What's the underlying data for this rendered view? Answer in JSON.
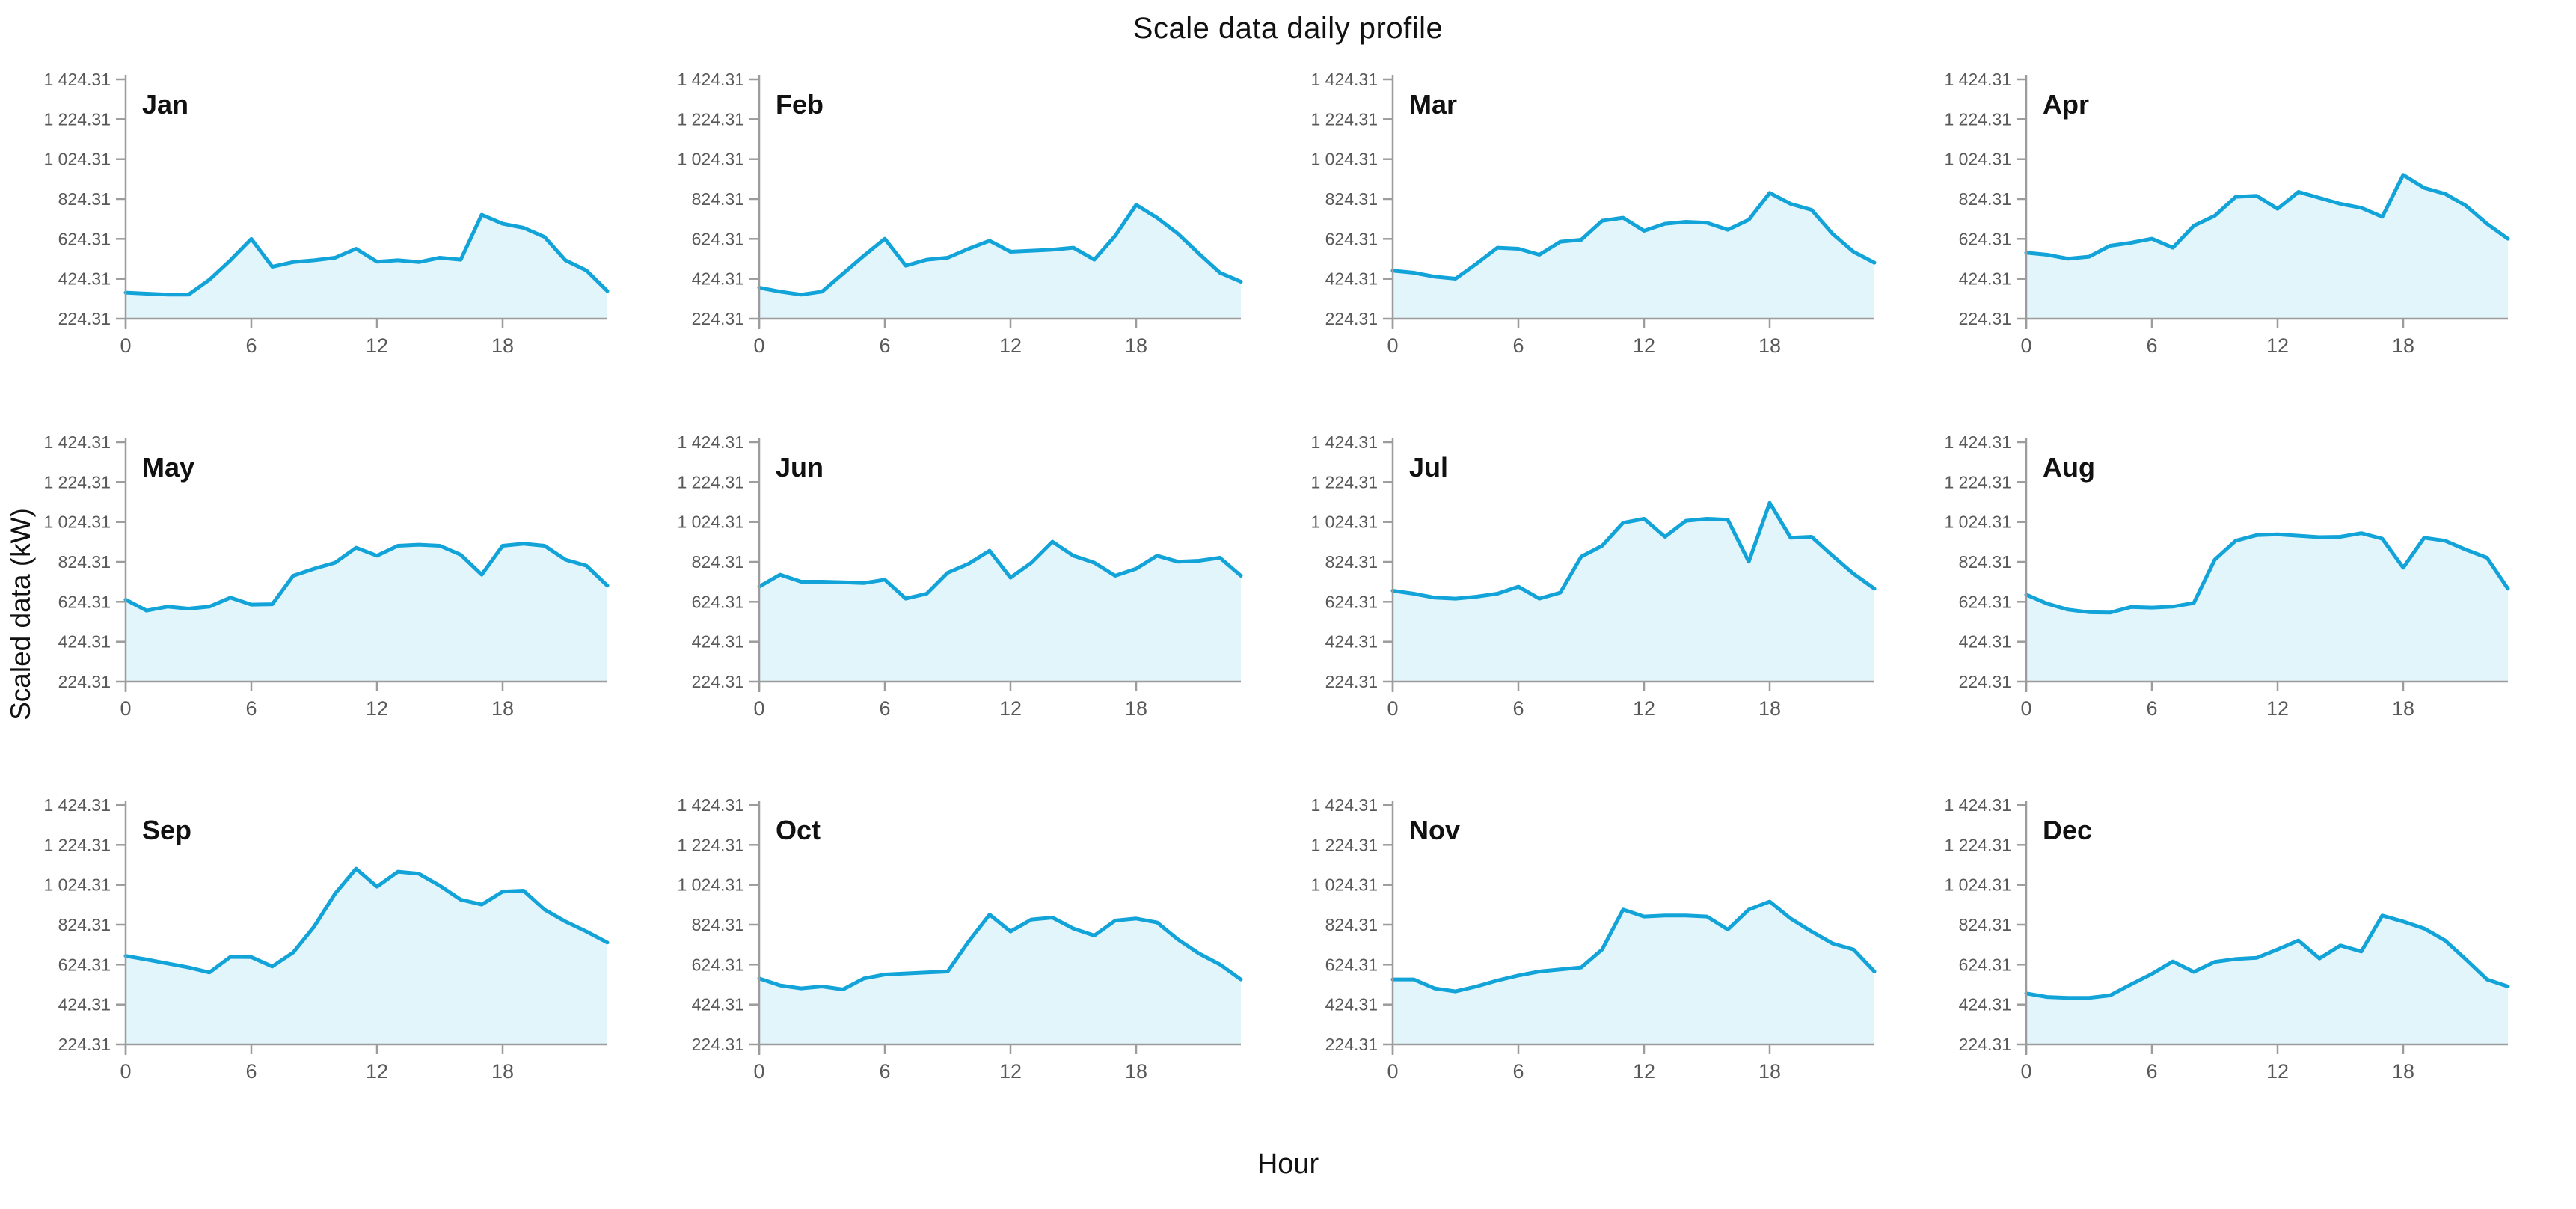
{
  "title": "Scale data daily profile",
  "xlabel": "Hour",
  "ylabel": "Scaled data (kW)",
  "colors": {
    "line": "#12a3d8",
    "fill": "#e2f5fb",
    "axis": "#9c9c9c",
    "tick_text": "#595959",
    "month_text": "#111111"
  },
  "chart_data": {
    "type": "area",
    "title": "Scale data daily profile",
    "xlabel": "Hour",
    "ylabel": "Scaled data (kW)",
    "layout": {
      "rows": 3,
      "cols": 4,
      "grid": false,
      "legend": false
    },
    "x": [
      0,
      1,
      2,
      3,
      4,
      5,
      6,
      7,
      8,
      9,
      10,
      11,
      12,
      13,
      14,
      15,
      16,
      17,
      18,
      19,
      20,
      21,
      22,
      23
    ],
    "x_ticks": [
      0,
      6,
      12,
      18
    ],
    "x_tick_labels": [
      "0",
      "6",
      "12",
      "18"
    ],
    "ylim": [
      224.31,
      1424.31
    ],
    "y_ticks": [
      224.31,
      424.31,
      624.31,
      824.31,
      1024.31,
      1224.31,
      1424.31
    ],
    "y_tick_labels": [
      "224.31",
      "424.31",
      "624.31",
      "824.31",
      "1 024.31",
      "1 224.31",
      "1 424.31"
    ],
    "series": [
      {
        "name": "Jan",
        "values": [
          355,
          350,
          345,
          345,
          420,
          517,
          624,
          485,
          508,
          517,
          530,
          575,
          510,
          517,
          508,
          530,
          520,
          745,
          700,
          680,
          634,
          517,
          466,
          363
        ]
      },
      {
        "name": "Feb",
        "values": [
          380,
          360,
          345,
          360,
          450,
          540,
          625,
          490,
          520,
          530,
          575,
          615,
          560,
          565,
          570,
          580,
          520,
          640,
          795,
          730,
          650,
          550,
          455,
          410
        ]
      },
      {
        "name": "Mar",
        "values": [
          465,
          455,
          435,
          425,
          500,
          580,
          575,
          545,
          610,
          620,
          715,
          730,
          665,
          700,
          710,
          705,
          670,
          720,
          855,
          800,
          770,
          650,
          560,
          505
        ]
      },
      {
        "name": "Apr",
        "values": [
          555,
          545,
          525,
          535,
          590,
          605,
          625,
          580,
          690,
          740,
          835,
          840,
          775,
          860,
          830,
          800,
          780,
          735,
          945,
          880,
          850,
          790,
          700,
          625
        ]
      },
      {
        "name": "May",
        "values": [
          635,
          580,
          600,
          590,
          600,
          645,
          610,
          612,
          755,
          790,
          820,
          895,
          855,
          905,
          910,
          905,
          860,
          760,
          905,
          915,
          905,
          835,
          805,
          705
        ]
      },
      {
        "name": "Jun",
        "values": [
          700,
          760,
          725,
          725,
          722,
          718,
          735,
          640,
          665,
          770,
          815,
          880,
          745,
          820,
          925,
          855,
          820,
          755,
          790,
          855,
          825,
          830,
          845,
          755
        ]
      },
      {
        "name": "Jul",
        "values": [
          680,
          665,
          645,
          640,
          650,
          665,
          700,
          640,
          670,
          850,
          905,
          1020,
          1040,
          950,
          1030,
          1040,
          1035,
          825,
          1120,
          945,
          950,
          855,
          765,
          690
        ]
      },
      {
        "name": "Aug",
        "values": [
          660,
          615,
          585,
          572,
          570,
          598,
          595,
          600,
          618,
          835,
          930,
          958,
          962,
          955,
          948,
          950,
          968,
          940,
          795,
          945,
          930,
          885,
          845,
          690
        ]
      },
      {
        "name": "Sep",
        "values": [
          668,
          650,
          630,
          610,
          585,
          663,
          662,
          615,
          685,
          815,
          980,
          1105,
          1015,
          1090,
          1080,
          1020,
          950,
          925,
          990,
          995,
          900,
          840,
          790,
          735
        ]
      },
      {
        "name": "Oct",
        "values": [
          555,
          520,
          505,
          515,
          500,
          555,
          575,
          580,
          585,
          590,
          740,
          875,
          790,
          850,
          860,
          805,
          770,
          845,
          855,
          835,
          750,
          680,
          625,
          550
        ]
      },
      {
        "name": "Nov",
        "values": [
          550,
          550,
          505,
          490,
          515,
          545,
          570,
          590,
          600,
          610,
          700,
          900,
          865,
          870,
          870,
          865,
          800,
          900,
          940,
          855,
          790,
          730,
          700,
          590
        ]
      },
      {
        "name": "Dec",
        "values": [
          480,
          462,
          458,
          458,
          470,
          525,
          578,
          640,
          588,
          638,
          652,
          658,
          700,
          745,
          655,
          720,
          690,
          870,
          840,
          805,
          745,
          650,
          550,
          515
        ]
      }
    ]
  }
}
